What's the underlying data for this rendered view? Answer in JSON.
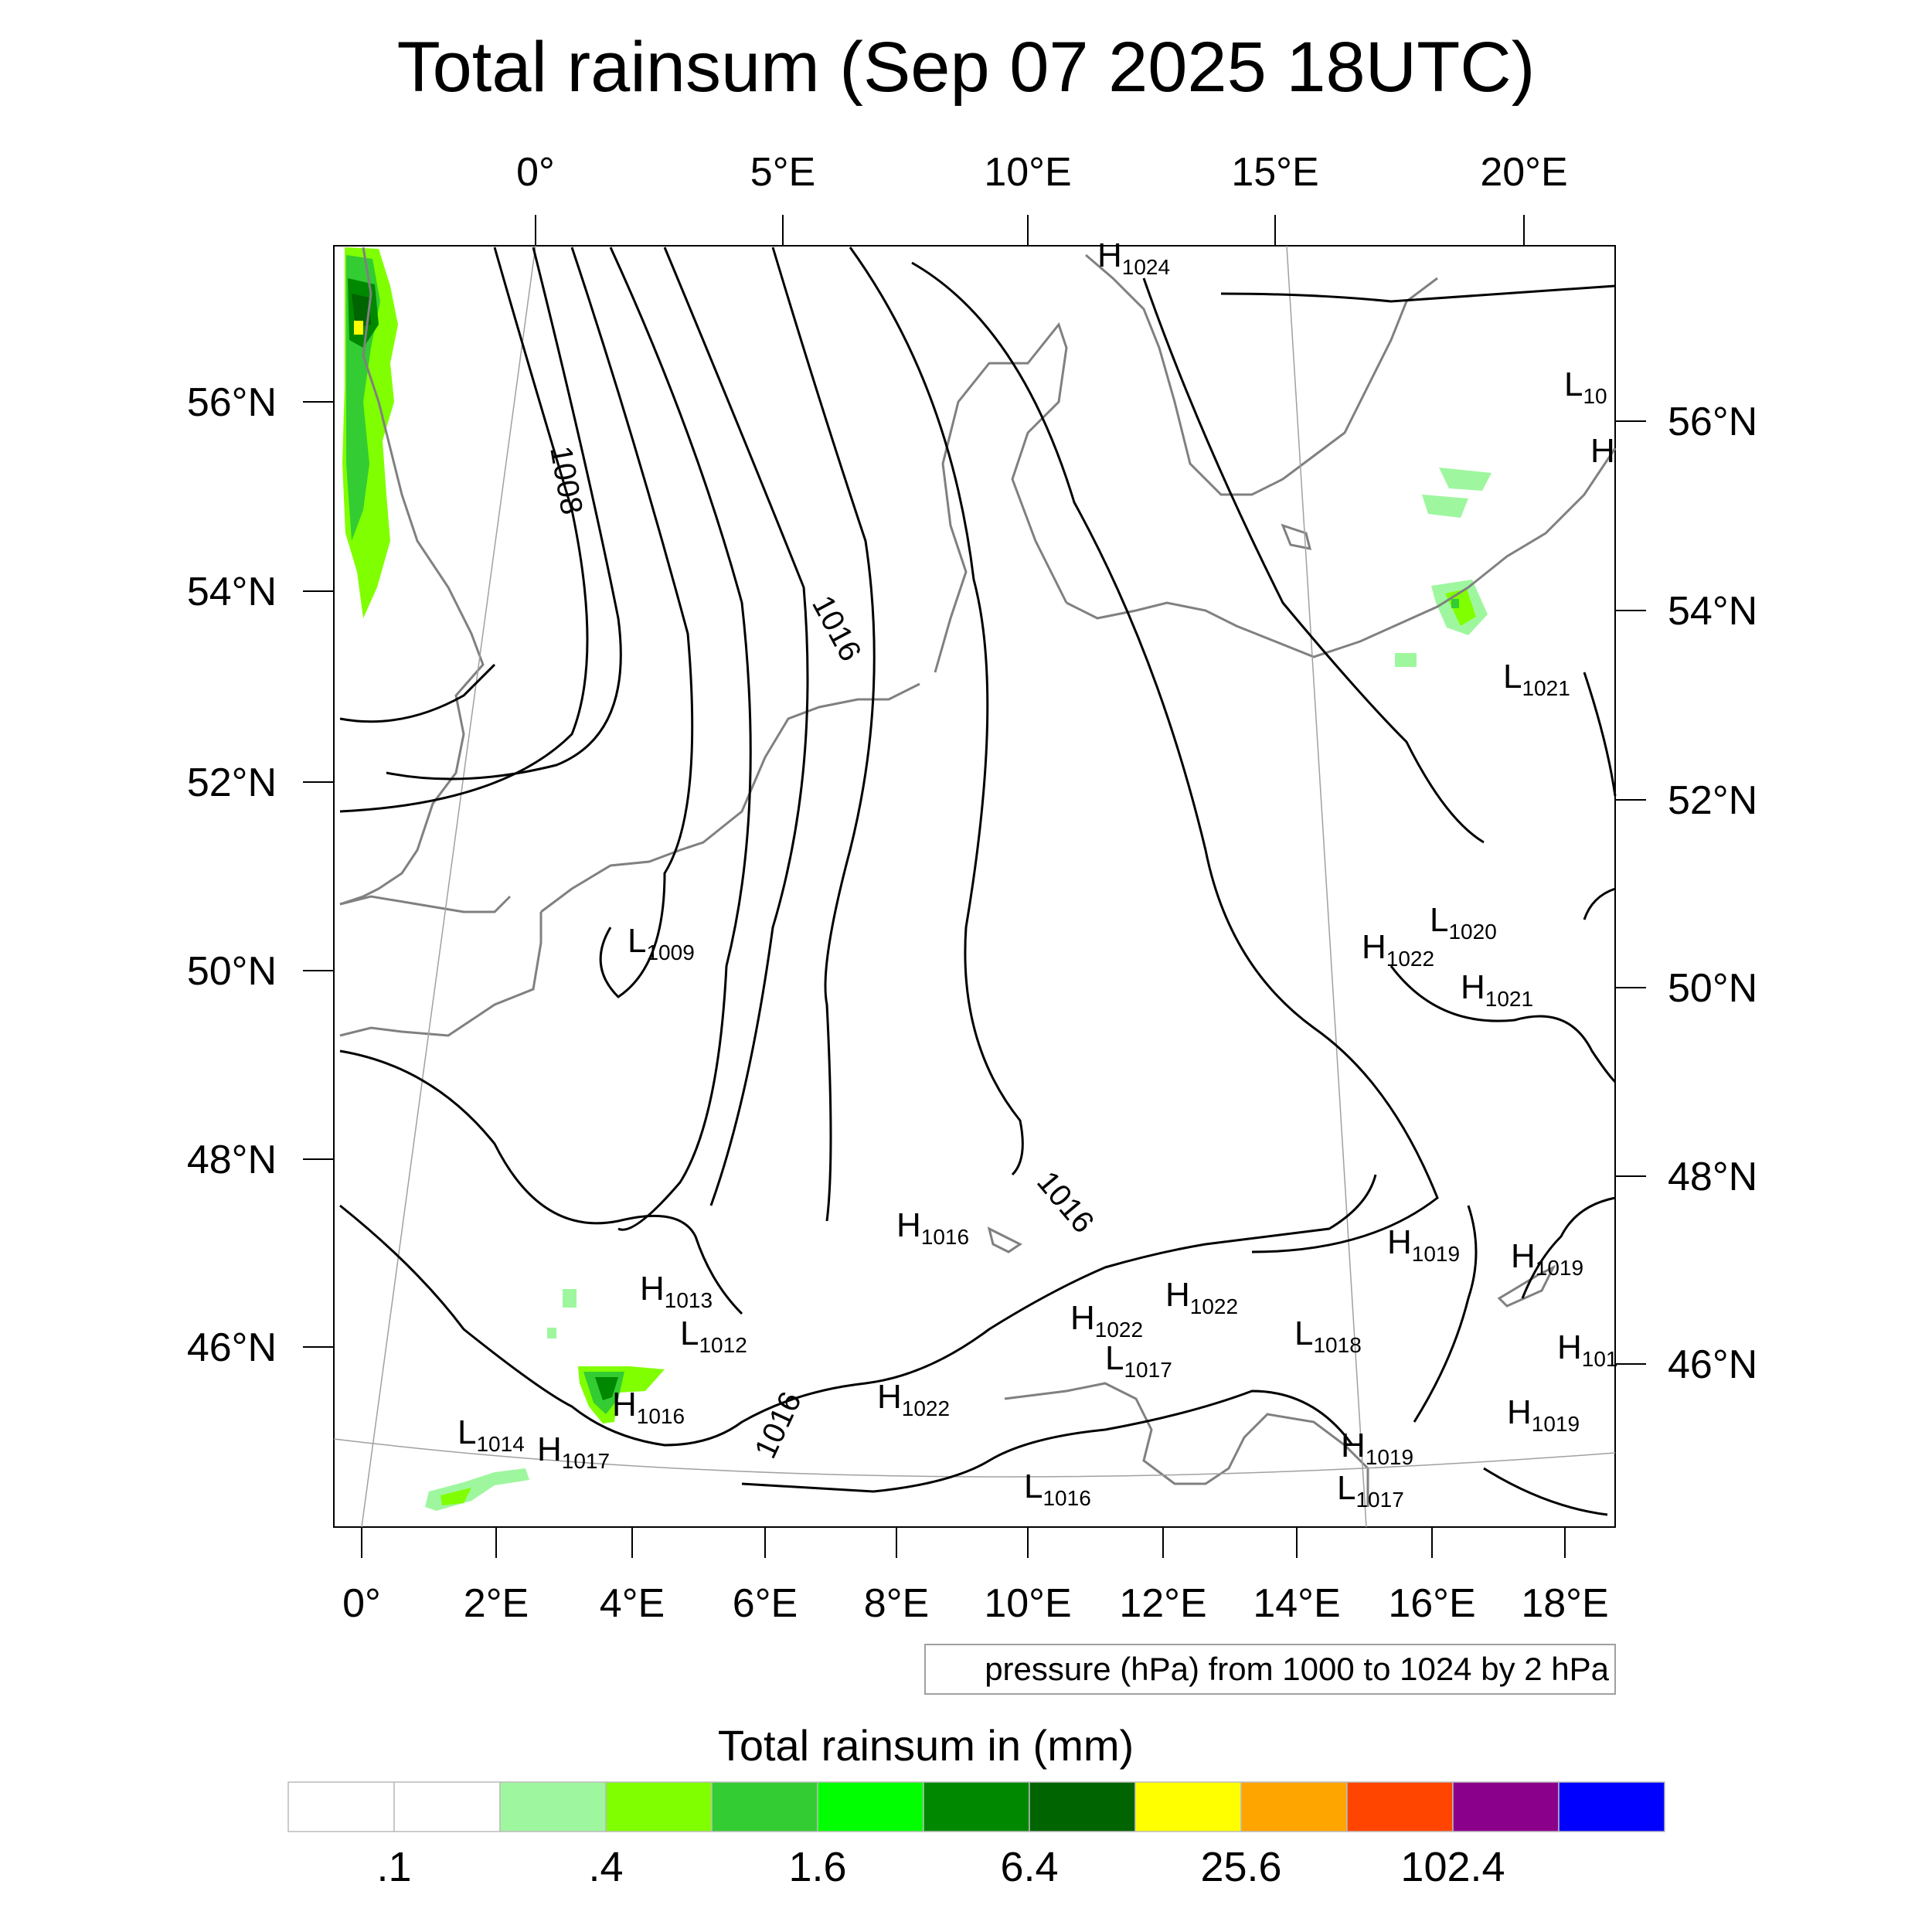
{
  "title": "Total rainsum (Sep 07 2025 18UTC)",
  "top_lon_labels": [
    "0°",
    "5°E",
    "10°E",
    "15°E",
    "20°E"
  ],
  "bottom_lon_labels": [
    "0°",
    "2°E",
    "4°E",
    "6°E",
    "8°E",
    "10°E",
    "12°E",
    "14°E",
    "16°E",
    "18°E"
  ],
  "left_lat_labels": [
    "56°N",
    "54°N",
    "52°N",
    "50°N",
    "48°N",
    "46°N"
  ],
  "right_lat_labels": [
    "56°N",
    "54°N",
    "52°N",
    "50°N",
    "48°N",
    "46°N"
  ],
  "isobar_labels": [
    "1008",
    "1016",
    "1016",
    "1016"
  ],
  "pressure_centers": [
    {
      "type": "H",
      "value": "1024"
    },
    {
      "type": "L",
      "value": "10"
    },
    {
      "type": "H",
      "value": ""
    },
    {
      "type": "L",
      "value": "1021"
    },
    {
      "type": "L",
      "value": "1020"
    },
    {
      "type": "H",
      "value": "1022"
    },
    {
      "type": "H",
      "value": "1021"
    },
    {
      "type": "L",
      "value": "1009"
    },
    {
      "type": "H",
      "value": "1016"
    },
    {
      "type": "H",
      "value": "1019"
    },
    {
      "type": "H",
      "value": "1019"
    },
    {
      "type": "H",
      "value": "1013"
    },
    {
      "type": "L",
      "value": "1012"
    },
    {
      "type": "H",
      "value": "1022"
    },
    {
      "type": "H",
      "value": "1022"
    },
    {
      "type": "L",
      "value": "1018"
    },
    {
      "type": "L",
      "value": "1017"
    },
    {
      "type": "H",
      "value": "101"
    },
    {
      "type": "H",
      "value": "1016"
    },
    {
      "type": "H",
      "value": "1022"
    },
    {
      "type": "H",
      "value": "1019"
    },
    {
      "type": "L",
      "value": "1014"
    },
    {
      "type": "H",
      "value": "1017"
    },
    {
      "type": "H",
      "value": "1019"
    },
    {
      "type": "L",
      "value": "1016"
    },
    {
      "type": "L",
      "value": "1017"
    }
  ],
  "contour_info": "pressure (hPa) from 1000 to 1024 by 2 hPa",
  "legend": {
    "title": "Total rainsum in (mm)",
    "colors": [
      "#ffffff",
      "#ffffff",
      "#9ef79e",
      "#80ff00",
      "#33cc33",
      "#00ff00",
      "#008800",
      "#006400",
      "#ffff00",
      "#ffa500",
      "#ff4500",
      "#8b008b",
      "#0000ff"
    ],
    "labels": [
      ".1",
      ".4",
      "1.6",
      "6.4",
      "25.6",
      "102.4"
    ]
  },
  "colors": {
    "coastline": "#808080",
    "isobar": "#000000",
    "graticule": "#a0a0a0"
  }
}
